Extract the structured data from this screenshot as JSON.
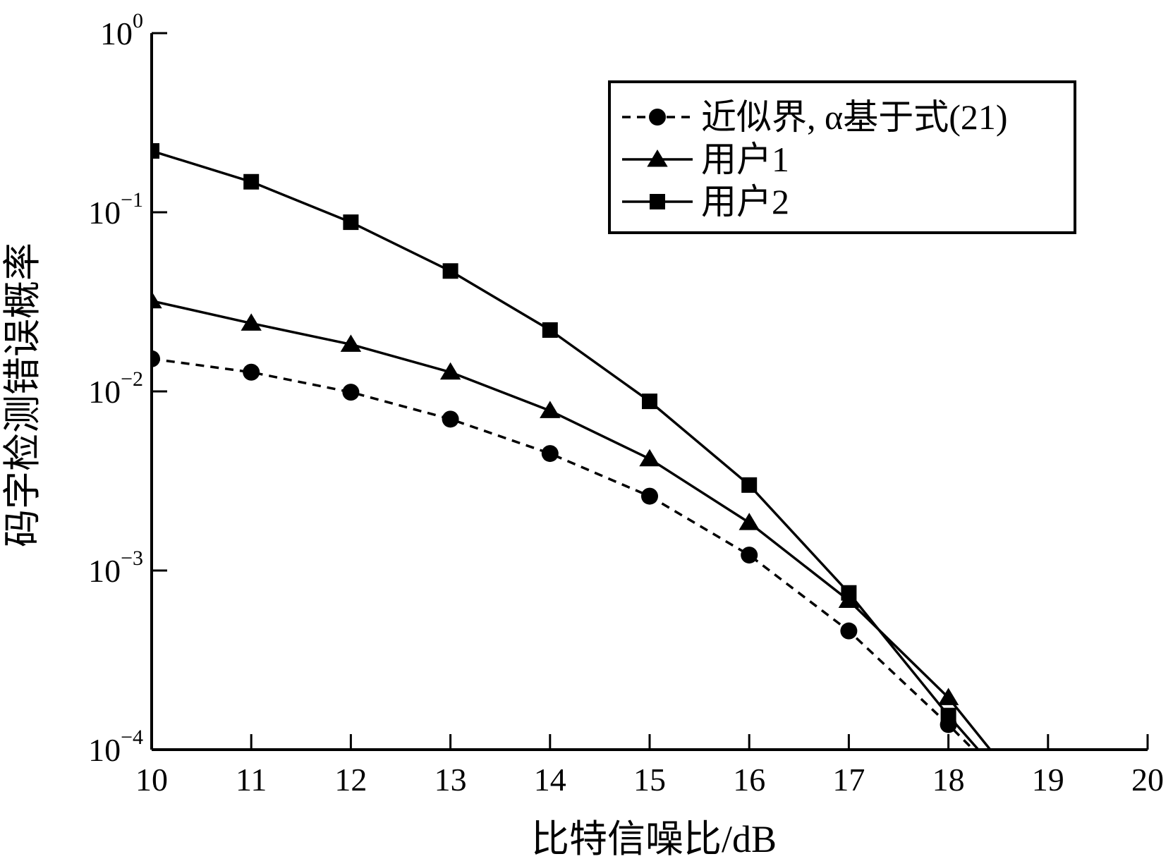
{
  "chart_data": {
    "type": "line",
    "xlabel": "比特信噪比/dB",
    "ylabel": "码字检测错误概率",
    "xlim": [
      10,
      20
    ],
    "ylim": [
      0.0001,
      1
    ],
    "yscale": "log",
    "x_ticks": [
      "10",
      "11",
      "12",
      "13",
      "14",
      "15",
      "16",
      "17",
      "18",
      "19",
      "20"
    ],
    "y_ticks": [
      {
        "base": "10",
        "exp": "0",
        "value": 1
      },
      {
        "base": "10",
        "exp": "−1",
        "value": 0.1
      },
      {
        "base": "10",
        "exp": "−2",
        "value": 0.01
      },
      {
        "base": "10",
        "exp": "−3",
        "value": 0.001
      },
      {
        "base": "10",
        "exp": "−4",
        "value": 0.0001
      }
    ],
    "grid": false,
    "legend_position": "top-right",
    "series": [
      {
        "name": "近似界, α基于式(21)",
        "style": "dashed",
        "marker": "circle",
        "color": "#000000",
        "x": [
          10,
          11,
          12,
          13,
          14,
          15,
          16,
          17,
          18,
          18.25
        ],
        "y": [
          0.0152,
          0.0128,
          0.0099,
          0.007,
          0.0045,
          0.0026,
          0.00122,
          0.00046,
          0.000138,
          0.0001
        ]
      },
      {
        "name": "用户1",
        "style": "solid",
        "marker": "triangle",
        "color": "#000000",
        "x": [
          10,
          11,
          12,
          13,
          14,
          15,
          16,
          17,
          18,
          18.42
        ],
        "y": [
          0.032,
          0.024,
          0.0183,
          0.0128,
          0.0078,
          0.0042,
          0.00185,
          0.00068,
          0.000195,
          0.0001
        ]
      },
      {
        "name": "用户2",
        "style": "solid",
        "marker": "square",
        "color": "#000000",
        "x": [
          10,
          11,
          12,
          13,
          14,
          15,
          16,
          17,
          18,
          18.3
        ],
        "y": [
          0.22,
          0.148,
          0.088,
          0.047,
          0.022,
          0.0088,
          0.003,
          0.00075,
          0.000155,
          0.0001
        ]
      }
    ]
  }
}
